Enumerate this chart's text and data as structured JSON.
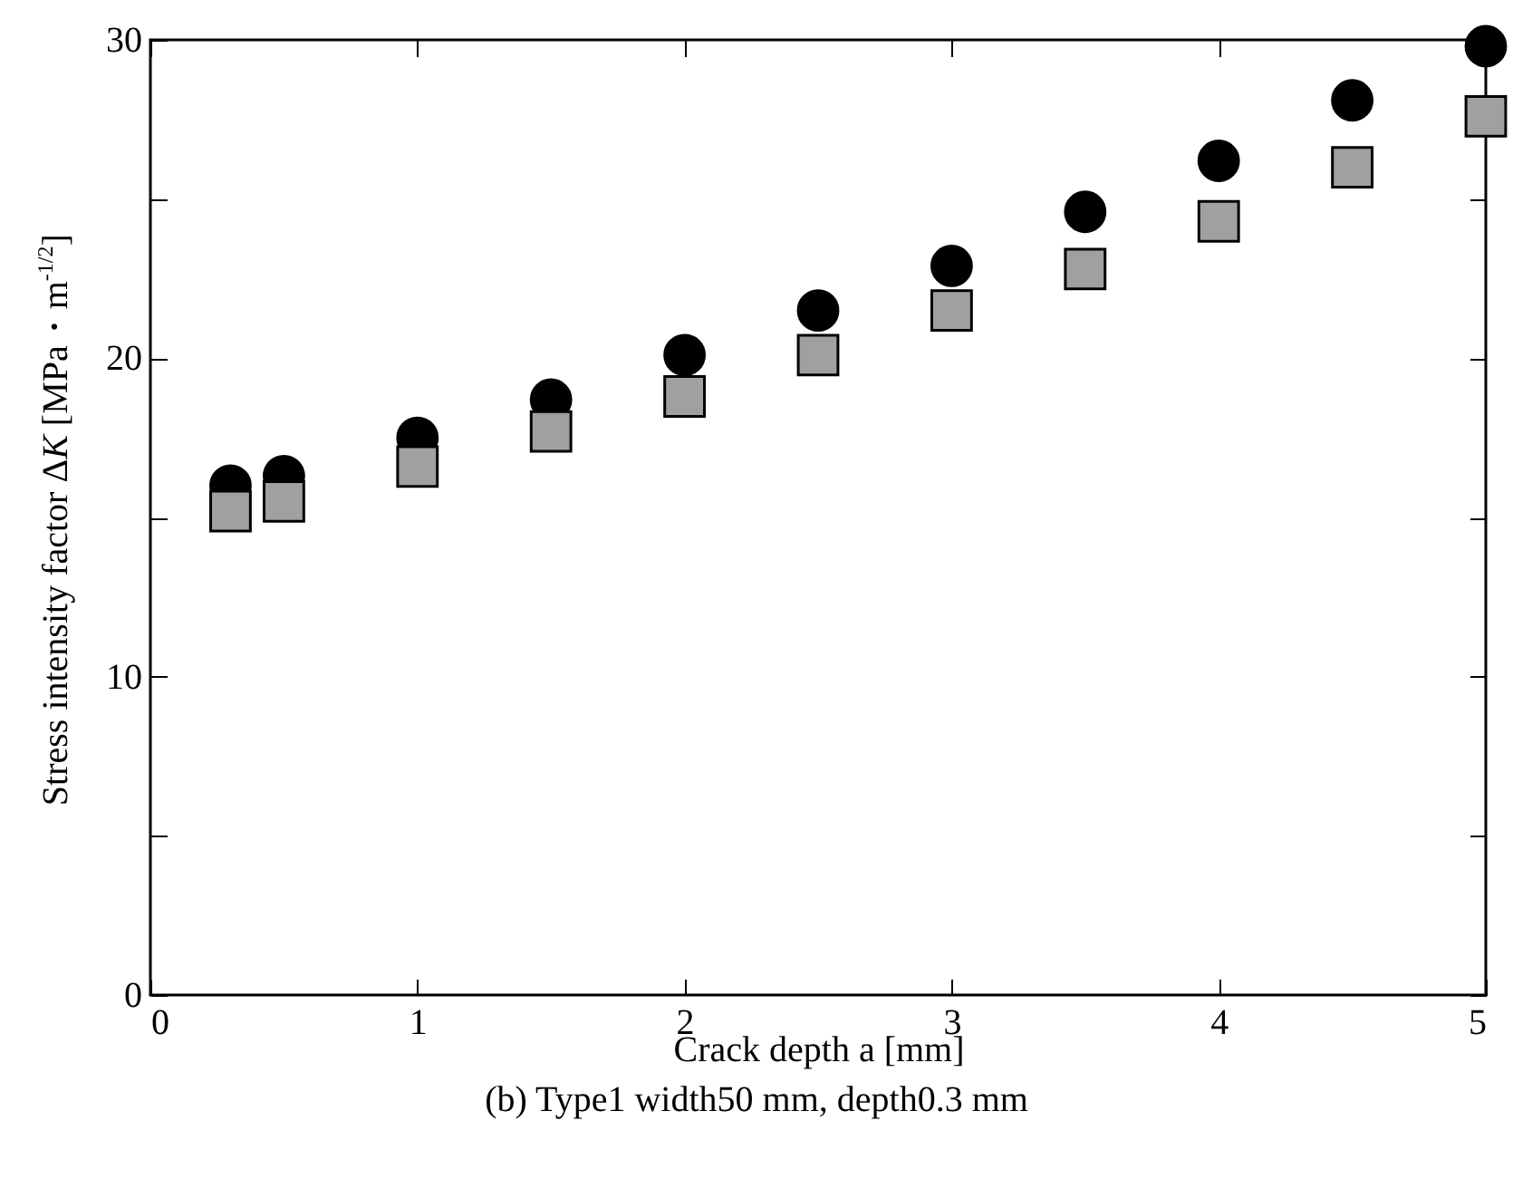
{
  "chart_data": {
    "type": "scatter",
    "xlabel": "Crack depth a [mm]",
    "ylabel": "Stress intensity factor ΔK [MPa・m$^{-1/2}$]",
    "annotations": [
      "(b) Type1 width50 mm, depth0.3 mm"
    ],
    "x": [
      0.3,
      0.5,
      1,
      1.5,
      2,
      2.5,
      3,
      3.5,
      4,
      4.5,
      5
    ],
    "series": [
      {
        "color": "#000000",
        "marker": "circle",
        "values": [
          16.0,
          16.3,
          17.5,
          18.7,
          20.1,
          21.5,
          22.9,
          24.6,
          26.2,
          28.1,
          29.8
        ]
      },
      {
        "color": "#a0a0a0",
        "marker": "square",
        "values": [
          15.2,
          15.5,
          16.6,
          17.7,
          18.8,
          20.1,
          21.5,
          22.8,
          24.3,
          26.0,
          27.6
        ]
      }
    ],
    "xlim": [
      0,
      5
    ],
    "xticks": [
      0,
      1,
      2,
      3,
      4,
      5
    ],
    "ylim": [
      0,
      30
    ],
    "yticks": [
      0,
      {
        "value": 5,
        "label": null
      },
      10,
      {
        "value": 15,
        "label": null
      },
      20,
      {
        "value": 25,
        "label": null
      },
      30
    ],
    "grid": false
  }
}
